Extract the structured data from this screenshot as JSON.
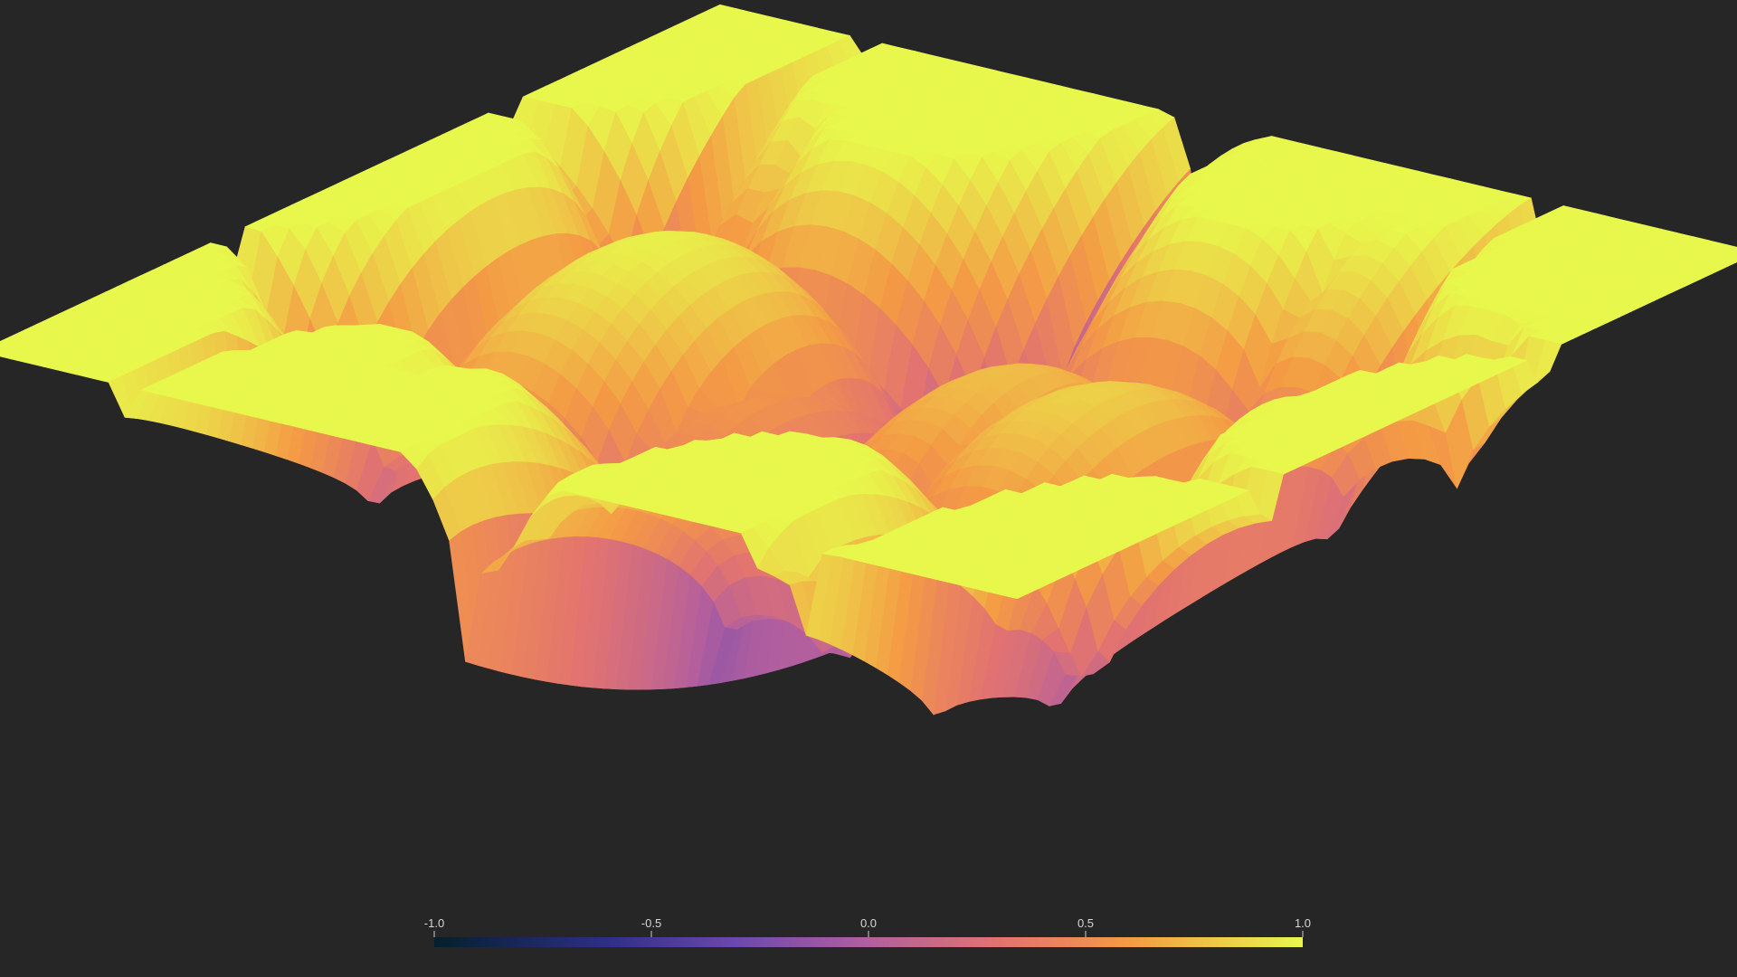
{
  "chart_data": {
    "type": "surface3d",
    "title": "",
    "xlabel": "",
    "ylabel": "",
    "zlabel": "",
    "value_range": [
      -1.0,
      1.0
    ],
    "colorscale": {
      "name": "thermal",
      "stops": [
        {
          "value": -1.0,
          "color": "#04202b"
        },
        {
          "value": -0.6,
          "color": "#2e2e8a"
        },
        {
          "value": -0.3,
          "color": "#6d48b0"
        },
        {
          "value": 0.0,
          "color": "#b35f9e"
        },
        {
          "value": 0.3,
          "color": "#e27370"
        },
        {
          "value": 0.6,
          "color": "#f49a45"
        },
        {
          "value": 1.0,
          "color": "#e8f74b"
        }
      ]
    },
    "colorbar": {
      "orientation": "horizontal",
      "placement": "bottom",
      "ticks": [
        {
          "value": -1.0,
          "label": "-1.0"
        },
        {
          "value": -0.5,
          "label": "-0.5"
        },
        {
          "value": 0.0,
          "label": "0.0"
        },
        {
          "value": 0.5,
          "label": "0.5"
        },
        {
          "value": 1.0,
          "label": "1.0"
        }
      ]
    },
    "grid": false,
    "legend": false
  },
  "colors": {
    "background": "#262626",
    "tick_text": "#d8d8d8"
  }
}
